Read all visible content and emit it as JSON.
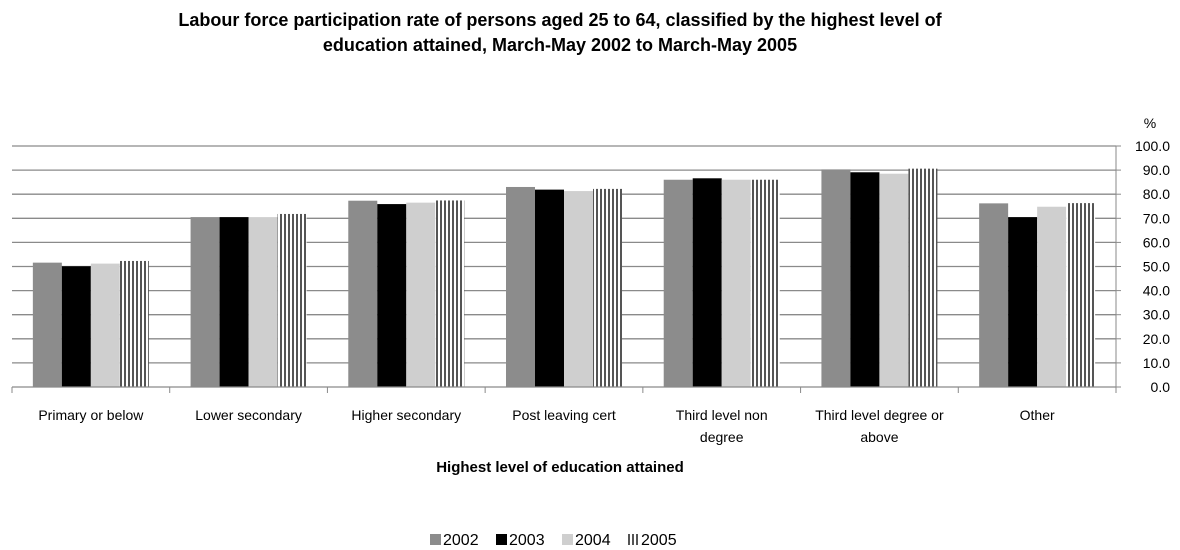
{
  "chart_data": {
    "type": "bar",
    "title_lines": [
      "Labour force participation rate of persons aged 25 to 64, classified by the highest level of",
      "education attained, March-May 2002 to March-May 2005"
    ],
    "xlabel": "Highest level of education attained",
    "y_unit_label": "%",
    "ylim": [
      0,
      100
    ],
    "y_tick_step": 10,
    "y_tick_labels": [
      "0.0",
      "10.0",
      "20.0",
      "30.0",
      "40.0",
      "50.0",
      "60.0",
      "70.0",
      "80.0",
      "90.0",
      "100.0"
    ],
    "categories": [
      "Primary or below",
      "Lower secondary",
      "Higher secondary",
      "Post leaving cert",
      "Third level non degree",
      "Third level degree or above",
      "Other"
    ],
    "category_label_lines": [
      [
        "Primary or below"
      ],
      [
        "Lower secondary"
      ],
      [
        "Higher secondary"
      ],
      [
        "Post leaving cert"
      ],
      [
        "Third level non",
        "degree"
      ],
      [
        "Third level degree or",
        "above"
      ],
      [
        "Other"
      ]
    ],
    "series": [
      {
        "name": "2002",
        "color": "#8c8c8c",
        "pattern": "solid",
        "values": [
          51.6,
          70.5,
          77.3,
          83.0,
          86.0,
          90.3,
          76.2
        ]
      },
      {
        "name": "2003",
        "color": "#000000",
        "pattern": "solid",
        "values": [
          50.1,
          70.5,
          75.9,
          81.9,
          86.6,
          89.1,
          70.5
        ]
      },
      {
        "name": "2004",
        "color": "#cfcfcf",
        "pattern": "solid",
        "values": [
          51.2,
          70.5,
          76.5,
          81.3,
          86.0,
          88.5,
          74.8
        ]
      },
      {
        "name": "2005",
        "color": "#666666",
        "pattern": "vertical-stripes",
        "values": [
          52.3,
          71.8,
          77.4,
          82.2,
          86.0,
          90.6,
          76.3
        ]
      }
    ],
    "grid": true,
    "y_axis_position": "right",
    "legend_position": "bottom"
  }
}
